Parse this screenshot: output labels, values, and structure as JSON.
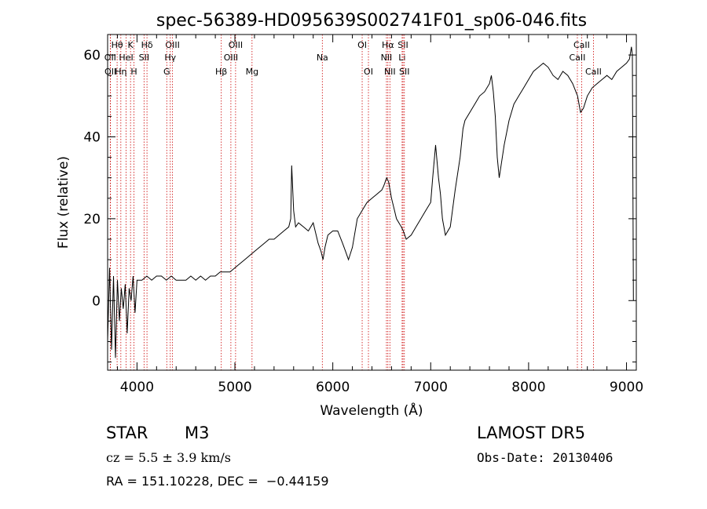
{
  "chart_data": {
    "type": "line",
    "title": "spec-56389-HD095639S002741F01_sp06-046.fits",
    "xlabel": "Wavelength (Å)",
    "ylabel": "Flux (relative)",
    "xlim": [
      3700,
      9100
    ],
    "ylim": [
      -17,
      65
    ],
    "xticks": [
      4000,
      5000,
      6000,
      7000,
      8000,
      9000
    ],
    "yticks": [
      0,
      20,
      40,
      60
    ],
    "grid": false,
    "line_color": "#000000",
    "marker_color": "#cc0000",
    "series": [
      {
        "x": [
          3700,
          3720,
          3740,
          3760,
          3780,
          3800,
          3820,
          3840,
          3860,
          3880,
          3900,
          3920,
          3940,
          3960,
          3980,
          4000,
          4050,
          4100,
          4150,
          4200,
          4250,
          4300,
          4350,
          4400,
          4450,
          4500,
          4550,
          4600,
          4650,
          4700,
          4750,
          4800,
          4850,
          4900,
          4950,
          5000,
          5050,
          5100,
          5150,
          5200,
          5250,
          5300,
          5350,
          5400,
          5450,
          5500,
          5550,
          5570,
          5580,
          5600,
          5620,
          5650,
          5700,
          5750,
          5800,
          5850,
          5880,
          5900,
          5920,
          5950,
          6000,
          6050,
          6100,
          6130,
          6160,
          6200,
          6250,
          6300,
          6350,
          6400,
          6450,
          6500,
          6520,
          6550,
          6570,
          6600,
          6630,
          6650,
          6700,
          6720,
          6750,
          6800,
          6850,
          6900,
          6950,
          7000,
          7020,
          7050,
          7080,
          7100,
          7120,
          7150,
          7200,
          7250,
          7300,
          7330,
          7350,
          7400,
          7450,
          7500,
          7550,
          7600,
          7620,
          7640,
          7660,
          7680,
          7700,
          7750,
          7800,
          7850,
          7900,
          7950,
          8000,
          8050,
          8100,
          8150,
          8200,
          8250,
          8300,
          8350,
          8400,
          8450,
          8500,
          8530,
          8560,
          8600,
          8650,
          8700,
          8750,
          8800,
          8850,
          8900,
          8950,
          9000,
          9030,
          9050,
          9060,
          9070
        ],
        "values": [
          -10,
          8,
          -12,
          6,
          -14,
          5,
          -5,
          3,
          -2,
          4,
          -8,
          3,
          0,
          6,
          -3,
          5,
          5,
          6,
          5,
          6,
          6,
          5,
          6,
          5,
          5,
          5,
          6,
          5,
          6,
          5,
          6,
          6,
          7,
          7,
          7,
          8,
          9,
          10,
          11,
          12,
          13,
          14,
          15,
          15,
          16,
          17,
          18,
          20,
          33,
          22,
          18,
          19,
          18,
          17,
          19,
          14,
          12,
          10,
          13,
          16,
          17,
          17,
          14,
          12,
          10,
          13,
          20,
          22,
          24,
          25,
          26,
          27,
          28,
          30,
          29,
          25,
          22,
          20,
          18,
          17,
          15,
          16,
          18,
          20,
          22,
          24,
          30,
          38,
          30,
          26,
          20,
          16,
          18,
          27,
          35,
          42,
          44,
          46,
          48,
          50,
          51,
          53,
          55,
          51,
          45,
          35,
          30,
          38,
          44,
          48,
          50,
          52,
          54,
          56,
          57,
          58,
          57,
          55,
          54,
          56,
          55,
          53,
          50,
          46,
          47,
          50,
          52,
          53,
          54,
          55,
          54,
          56,
          57,
          58,
          59,
          62,
          60,
          0
        ]
      }
    ],
    "line_markers": [
      {
        "label": "Hθ",
        "x": 3797,
        "row": 1
      },
      {
        "label": "K",
        "x": 3934,
        "row": 1
      },
      {
        "label": "Hδ",
        "x": 4102,
        "row": 1
      },
      {
        "label": "OIII",
        "x": 4363,
        "row": 1
      },
      {
        "label": "OIII",
        "x": 5007,
        "row": 1
      },
      {
        "label": "OI",
        "x": 6300,
        "row": 1
      },
      {
        "label": "Hα",
        "x": 6563,
        "row": 1
      },
      {
        "label": "SII",
        "x": 6717,
        "row": 1
      },
      {
        "label": "CaII",
        "x": 8542,
        "row": 1
      },
      {
        "label": "OII",
        "x": 3727,
        "row": 2
      },
      {
        "label": "HeI",
        "x": 3889,
        "row": 2
      },
      {
        "label": "SII",
        "x": 4072,
        "row": 2
      },
      {
        "label": "Hγ",
        "x": 4340,
        "row": 2
      },
      {
        "label": "OIII",
        "x": 4959,
        "row": 2
      },
      {
        "label": "Na",
        "x": 5893,
        "row": 2
      },
      {
        "label": "NII",
        "x": 6548,
        "row": 2
      },
      {
        "label": "Li",
        "x": 6708,
        "row": 2
      },
      {
        "label": "CaII",
        "x": 8498,
        "row": 2
      },
      {
        "label": "OII",
        "x": 3729,
        "row": 3
      },
      {
        "label": "Hη",
        "x": 3835,
        "row": 3
      },
      {
        "label": "H",
        "x": 3969,
        "row": 3
      },
      {
        "label": "G",
        "x": 4304,
        "row": 3
      },
      {
        "label": "Hβ",
        "x": 4861,
        "row": 3
      },
      {
        "label": "Mg",
        "x": 5175,
        "row": 3
      },
      {
        "label": "OI",
        "x": 6364,
        "row": 3
      },
      {
        "label": "NII",
        "x": 6583,
        "row": 3
      },
      {
        "label": "SII",
        "x": 6731,
        "row": 3
      },
      {
        "label": "CaII",
        "x": 8662,
        "row": 3
      }
    ]
  },
  "info": {
    "object_class": "STAR",
    "subclass": "M3",
    "survey": "LAMOST DR5",
    "cz_text": "cz = 5.5 ± 3.9 km/s",
    "obs_date": "Obs-Date: 20130406",
    "coords": "RA = 151.10228, DEC =  −0.44159"
  }
}
